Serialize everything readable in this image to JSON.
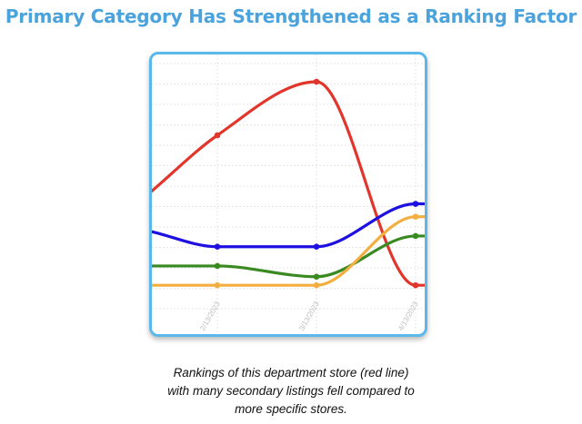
{
  "page": {
    "title": "Primary Category Has Strengthened as a Ranking Factor",
    "caption": [
      "Rankings of this department store (red line)",
      "with many secondary listings fell compared to",
      "more specific stores."
    ]
  },
  "chart_data": {
    "type": "line",
    "title": "",
    "xlabel": "",
    "ylabel": "",
    "x_tick_labels": [
      "2/13/2023",
      "3/13/2023",
      "4/13/2023"
    ],
    "ylim": [
      0,
      1
    ],
    "y_gridlines": 13,
    "grid": true,
    "legend": "none",
    "series": [
      {
        "color": "#e2352c",
        "values": [
          0.49,
          0.75,
          1.0,
          0.05,
          0.05
        ]
      },
      {
        "color": "#1e10e0",
        "values": [
          0.3,
          0.23,
          0.23,
          0.43,
          0.43
        ]
      },
      {
        "color": "#3a8a22",
        "values": [
          0.14,
          0.14,
          0.09,
          0.28,
          0.28
        ]
      },
      {
        "color": "#f3ae3f",
        "values": [
          0.05,
          0.05,
          0.05,
          0.37,
          0.37
        ]
      }
    ]
  }
}
